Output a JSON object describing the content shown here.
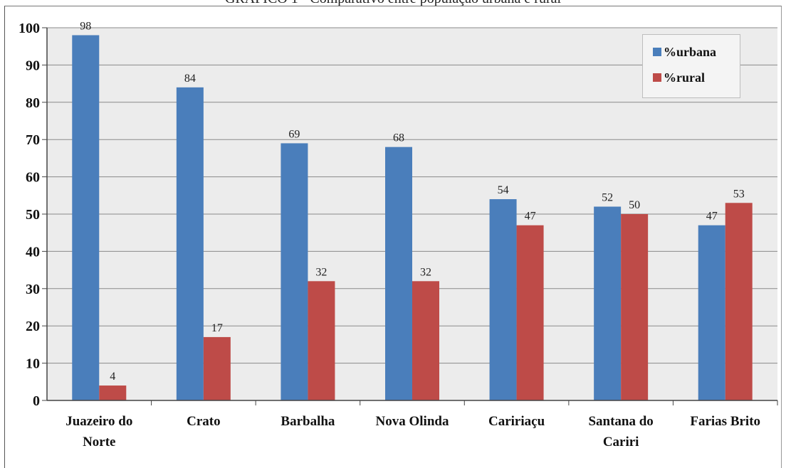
{
  "chart_title": "GRÁFICO 1 - Comparativo entre população urbana e rural",
  "chart_data": {
    "type": "bar",
    "categories": [
      [
        "Juazeiro do",
        "Norte"
      ],
      [
        "Crato"
      ],
      [
        "Barbalha"
      ],
      [
        "Nova Olinda"
      ],
      [
        "Caririaçu"
      ],
      [
        "Santana do",
        "Cariri"
      ],
      [
        "Farias Brito"
      ]
    ],
    "series": [
      {
        "name": "%urbana",
        "color": "#4a7ebb",
        "values": [
          98,
          84,
          69,
          68,
          54,
          52,
          47
        ]
      },
      {
        "name": "%rural",
        "color": "#be4b48",
        "values": [
          4,
          17,
          32,
          32,
          47,
          50,
          53
        ]
      }
    ],
    "ylim": [
      0,
      100
    ],
    "yticks": [
      0,
      10,
      20,
      30,
      40,
      50,
      60,
      70,
      80,
      90,
      100
    ],
    "grid": true,
    "legend_position": "top-right"
  }
}
